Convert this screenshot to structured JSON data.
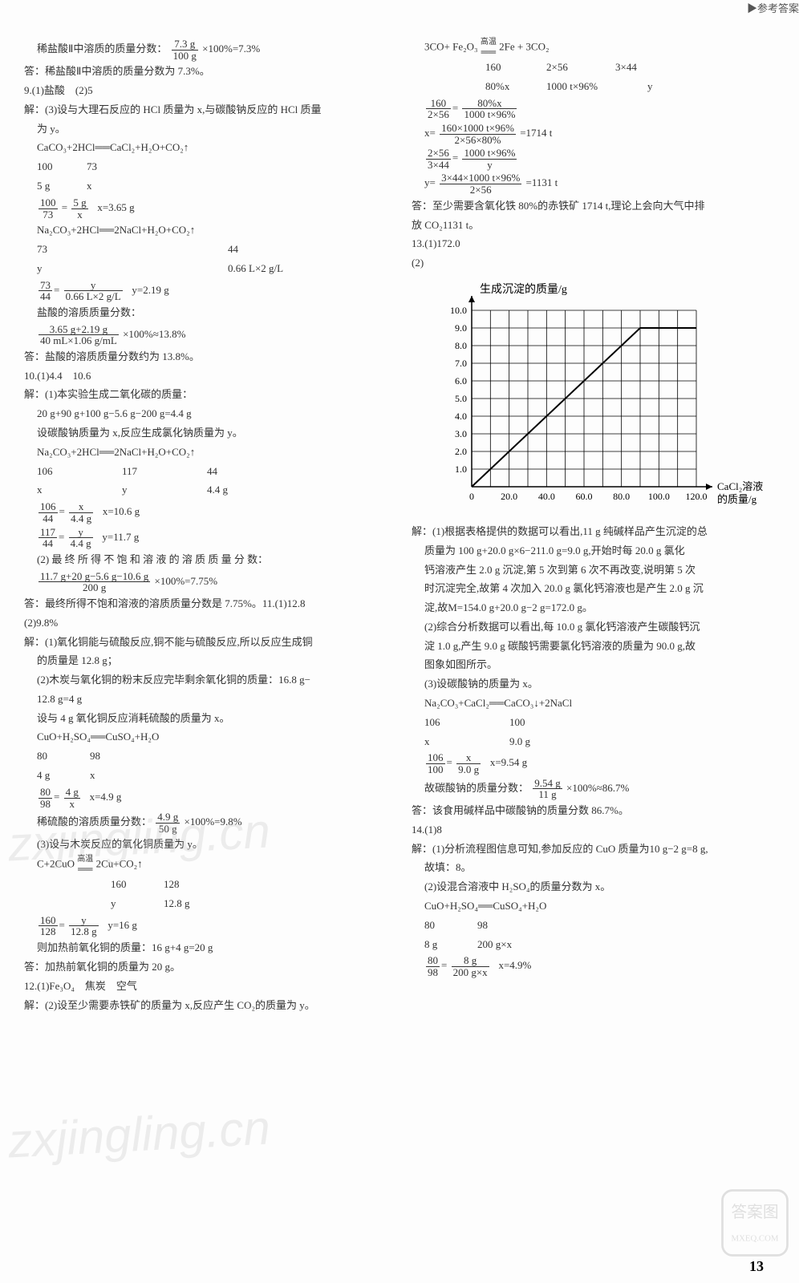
{
  "header": "▶参考答案",
  "page_number": "13",
  "left": {
    "l1a": "稀盐酸Ⅱ中溶质的质量分数：",
    "l1_frac_num": "7.3 g",
    "l1_frac_den": "100 g",
    "l1b": "×100%=7.3%",
    "l2": "答：稀盐酸Ⅱ中溶质的质量分数为 7.3%。",
    "l3": "9.(1)盐酸　(2)5",
    "l4": "解：(3)设与大理石反应的 HCl 质量为 x,与碳酸钠反应的 HCl 质量",
    "l4b": "为 y。",
    "l5": "CaCO₃+2HCl══CaCl₂+H₂O+CO₂↑",
    "l6a": "100",
    "l6b": "73",
    "l7a": "5 g",
    "l7b": "x",
    "l8_f1num": "100",
    "l8_f1den": "73",
    "l8_eq": "=",
    "l8_f2num": "5 g",
    "l8_f2den": "x",
    "l8_ans": "x=3.65 g",
    "l9": "Na₂CO₃+2HCl══2NaCl+H₂O+CO₂↑",
    "l10a": "73",
    "l10b": "44",
    "l11a": "y",
    "l11b": "0.66 L×2 g/L",
    "l12_f1num": "73",
    "l12_f1den": "44",
    "l12_f2num": "y",
    "l12_f2den": "0.66 L×2 g/L",
    "l12_ans": "y=2.19 g",
    "l13": "盐酸的溶质质量分数：",
    "l14_num": "3.65 g+2.19 g",
    "l14_den": "40 mL×1.06 g/mL",
    "l14b": "×100%≈13.8%",
    "l15": "答：盐酸的溶质质量分数约为 13.8%。",
    "l16": "10.(1)4.4　10.6",
    "l17": "解：(1)本实验生成二氧化碳的质量：",
    "l18": "20 g+90 g+100 g−5.6 g−200 g=4.4 g",
    "l19": "设碳酸钠质量为 x,反应生成氯化钠质量为 y。",
    "l20": "Na₂CO₃+2HCl══2NaCl+H₂O+CO₂↑",
    "l21a": "106",
    "l21b": "117",
    "l21c": "44",
    "l22a": "x",
    "l22b": "y",
    "l22c": "4.4 g",
    "l23_f1num": "106",
    "l23_f1den": "44",
    "l23_f2num": "x",
    "l23_f2den": "4.4 g",
    "l23_ans": "x=10.6 g",
    "l24_f1num": "117",
    "l24_f1den": "44",
    "l24_f2num": "y",
    "l24_f2den": "4.4 g",
    "l24_ans": "y=11.7 g",
    "l25": "(2) 最 终 所 得 不 饱 和 溶 液 的 溶 质 质 量 分 数：",
    "l26_num": "11.7 g+20 g−5.6 g−10.6 g",
    "l26_den": "200 g",
    "l26b": "×100%=7.75%",
    "l27": "答：最终所得不饱和溶液的溶质质量分数是 7.75%。11.(1)12.8",
    "l28": "(2)9.8%",
    "l29": "解：(1)氧化铜能与硫酸反应,铜不能与硫酸反应,所以反应生成铜",
    "l29b": "的质量是 12.8 g；",
    "l30": "(2)木炭与氧化铜的粉末反应完毕剩余氧化铜的质量：16.8 g−",
    "l30b": "12.8 g=4 g",
    "l31": "设与 4 g 氧化铜反应消耗硫酸的质量为 x。",
    "l32": "CuO+H₂SO₄══CuSO₄+H₂O",
    "l33a": "80",
    "l33b": "98",
    "l34a": "4 g",
    "l34b": "x",
    "l35_f1num": "80",
    "l35_f1den": "98",
    "l35_f2num": "4 g",
    "l35_f2den": "x",
    "l35_ans": "x=4.9 g",
    "l36a": "稀硫酸的溶质质量分数：",
    "l36_num": "4.9 g",
    "l36_den": "50 g",
    "l36b": "×100%=9.8%",
    "l37": "(3)设与木炭反应的氧化铜质量为 y。",
    "l38a": "C+2CuO",
    "l38cond_top": "高温",
    "l38cond_bot": "══",
    "l38b": "2Cu+CO₂↑",
    "l39a": "160",
    "l39b": "128",
    "l40a": "y",
    "l40b": "12.8 g",
    "l41_f1num": "160",
    "l41_f1den": "128",
    "l41_f2num": "y",
    "l41_f2den": "12.8 g",
    "l41_ans": "y=16 g",
    "l42": "则加热前氧化铜的质量：16 g+4 g=20 g",
    "l43": "答：加热前氧化铜的质量为 20 g。",
    "l44": "12.(1)Fe₃O₄　焦炭　空气",
    "l45": "解：(2)设至少需要赤铁矿的质量为 x,反应产生 CO₂的质量为 y。"
  },
  "right": {
    "r1a": "3CO+ Fe₂O₃",
    "r1cond": "高温",
    "r1b": "2Fe + 3CO₂",
    "r2a": "160",
    "r2b": "2×56",
    "r2c": "3×44",
    "r3a": "80%x",
    "r3b": "1000 t×96%",
    "r3c": "y",
    "r4_f1num": "160",
    "r4_f1den": "2×56",
    "r4_f2num": "80%x",
    "r4_f2den": "1000 t×96%",
    "r5_num": "160×1000 t×96%",
    "r5_den": "2×56×80%",
    "r5_pre": "x=",
    "r5b": "=1714 t",
    "r6_f1num": "2×56",
    "r6_f1den": "3×44",
    "r6_f2num": "1000 t×96%",
    "r6_f2den": "y",
    "r7_pre": "y=",
    "r7_num": "3×44×1000 t×96%",
    "r7_den": "2×56",
    "r7b": "=1131 t",
    "r8": "答：至少需要含氧化铁 80%的赤铁矿 1714 t,理论上会向大气中排",
    "r8b": "放 CO₂1131 t。",
    "r9": "13.(1)172.0",
    "r10": "(2)",
    "graph": {
      "ylabel": "生成沉淀的质量/g",
      "xlabel": "CaCl₂溶液\n的质量/g",
      "yticks": [
        "0",
        "1.0",
        "2.0",
        "3.0",
        "4.0",
        "5.0",
        "6.0",
        "7.0",
        "8.0",
        "9.0",
        "10.0"
      ],
      "xticks": [
        "0",
        "20.0",
        "40.0",
        "60.0",
        "80.0",
        "100.0",
        "120.0"
      ],
      "xlim": [
        0,
        120
      ],
      "ylim": [
        0,
        10
      ],
      "line": [
        [
          0,
          0
        ],
        [
          90,
          9
        ],
        [
          120,
          9
        ]
      ],
      "bg": "#ffffff",
      "grid": "#000000",
      "axis": "#000000",
      "line_color": "#000000"
    },
    "r11": "解：(1)根据表格提供的数据可以看出,11 g 纯碱样品产生沉淀的总",
    "r12": "质量为 100 g+20.0 g×6−211.0 g=9.0 g,开始时每 20.0 g 氯化",
    "r13": "钙溶液产生 2.0 g 沉淀,第 5 次到第 6 次不再改变,说明第 5 次",
    "r14": "时沉淀完全,故第 4 次加入 20.0 g 氯化钙溶液也是产生 2.0 g 沉",
    "r15": "淀,故M=154.0 g+20.0 g−2 g=172.0 g。",
    "r16": "(2)综合分析数据可以看出,每 10.0 g 氯化钙溶液产生碳酸钙沉",
    "r17": "淀 1.0 g,产生 9.0 g 碳酸钙需要氯化钙溶液的质量为 90.0 g,故",
    "r18": "图象如图所示。",
    "r19": "(3)设碳酸钠的质量为 x。",
    "r20": "Na₂CO₃+CaCl₂══CaCO₃↓+2NaCl",
    "r21a": "106",
    "r21b": "100",
    "r22a": "x",
    "r22b": "9.0 g",
    "r23_f1num": "106",
    "r23_f1den": "100",
    "r23_f2num": "x",
    "r23_f2den": "9.0 g",
    "r23_ans": "x=9.54 g",
    "r24a": "故碳酸钠的质量分数：",
    "r24_num": "9.54 g",
    "r24_den": "11 g",
    "r24b": "×100%≈86.7%",
    "r25": "答：该食用碱样品中碳酸钠的质量分数 86.7%。",
    "r26": "14.(1)8",
    "r27": "解：(1)分析流程图信息可知,参加反应的 CuO 质量为10 g−2 g=8 g,",
    "r28": "故填：8。",
    "r29": "(2)设混合溶液中 H₂SO₄的质量分数为 x。",
    "r30": "CuO+H₂SO₄══CuSO₄+H₂O",
    "r31a": "80",
    "r31b": "98",
    "r32a": "8 g",
    "r32b": "200 g×x",
    "r33_f1num": "80",
    "r33_f1den": "98",
    "r33_f2num": "8 g",
    "r33_f2den": "200 g×x",
    "r33_ans": "x=4.9%"
  },
  "watermark": "zxjingling.cn",
  "badge_top": "答案图",
  "badge_bottom": "MXEQ.COM"
}
